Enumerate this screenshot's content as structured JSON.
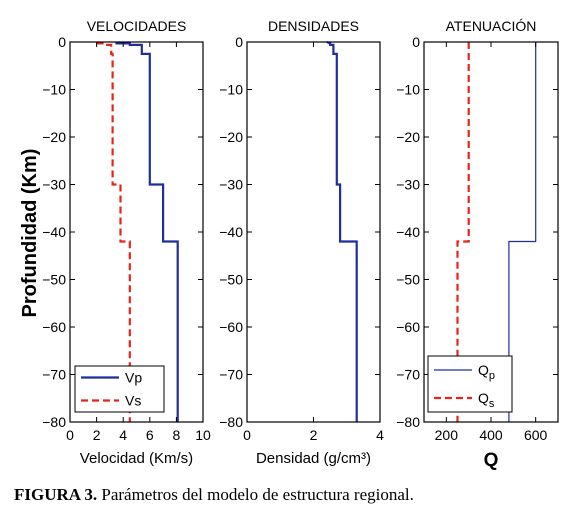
{
  "y_axis_label": "Profundidad (Km)",
  "caption": {
    "label": "FIGURA 3.",
    "text": " Parámetros del modelo de estructura regional."
  },
  "colors": {
    "blue": "#1f2e9c",
    "red": "#e8231c",
    "axis": "#000000"
  },
  "chart_data": [
    {
      "type": "line",
      "title": "VELOCIDADES",
      "xlabel": "Velocidad (Km/s)",
      "ylabel": "Profundidad (Km)",
      "xlim": [
        0,
        10
      ],
      "ylim": [
        -80,
        0
      ],
      "xticks": [
        0,
        2,
        4,
        6,
        8,
        10
      ],
      "yticks": [
        0,
        -10,
        -20,
        -30,
        -40,
        -50,
        -60,
        -70,
        -80
      ],
      "legend": "bottom-left",
      "series": [
        {
          "name": "Vp",
          "color": "#1f2e9c",
          "dash": "solid",
          "points": [
            [
              3.5,
              0
            ],
            [
              3.5,
              -0.3
            ],
            [
              4.5,
              -0.3
            ],
            [
              4.5,
              -0.6
            ],
            [
              5.4,
              -0.6
            ],
            [
              5.4,
              -2.5
            ],
            [
              6.0,
              -2.5
            ],
            [
              6.0,
              -30
            ],
            [
              7.0,
              -30
            ],
            [
              7.0,
              -42
            ],
            [
              8.1,
              -42
            ],
            [
              8.1,
              -80
            ]
          ]
        },
        {
          "name": "Vs",
          "color": "#e8231c",
          "dash": "dashed",
          "points": [
            [
              2.0,
              -0.3
            ],
            [
              2.6,
              -0.3
            ],
            [
              2.6,
              -0.6
            ],
            [
              3.1,
              -0.6
            ],
            [
              3.1,
              -2.5
            ],
            [
              3.2,
              -2.5
            ],
            [
              3.2,
              -30
            ],
            [
              3.8,
              -30
            ],
            [
              3.8,
              -42
            ],
            [
              4.5,
              -42
            ],
            [
              4.5,
              -80
            ]
          ]
        }
      ]
    },
    {
      "type": "line",
      "title": "DENSIDADES",
      "xlabel": "Densidad (g/cm³)",
      "ylabel": "",
      "xlim": [
        0,
        4
      ],
      "ylim": [
        -80,
        0
      ],
      "xticks": [
        0,
        2,
        4
      ],
      "yticks": [
        0,
        -10,
        -20,
        -30,
        -40,
        -50,
        -60,
        -70,
        -80
      ],
      "series": [
        {
          "name": "",
          "color": "#1f2e9c",
          "dash": "solid",
          "points": [
            [
              2.4,
              0
            ],
            [
              2.5,
              -0.3
            ],
            [
              2.5,
              -0.6
            ],
            [
              2.6,
              -0.6
            ],
            [
              2.6,
              -2.5
            ],
            [
              2.7,
              -2.5
            ],
            [
              2.7,
              -30
            ],
            [
              2.8,
              -30
            ],
            [
              2.8,
              -42
            ],
            [
              3.3,
              -42
            ],
            [
              3.3,
              -80
            ]
          ]
        }
      ]
    },
    {
      "type": "line",
      "title": "ATENUACIÓN",
      "xlabel": "Q",
      "ylabel": "",
      "xlim": [
        100,
        700
      ],
      "ylim": [
        -80,
        0
      ],
      "xticks": [
        200,
        400,
        600
      ],
      "yticks": [
        0,
        -10,
        -20,
        -30,
        -40,
        -50,
        -60,
        -70,
        -80
      ],
      "legend": "bottom-left",
      "series": [
        {
          "name": "Qp",
          "color": "#1f2e9c",
          "dash": "solid",
          "points": [
            [
              600,
              0
            ],
            [
              600,
              -42
            ],
            [
              480,
              -42
            ],
            [
              480,
              -80
            ]
          ]
        },
        {
          "name": "Qs",
          "color": "#e8231c",
          "dash": "dashed",
          "points": [
            [
              300,
              0
            ],
            [
              300,
              -42
            ],
            [
              250,
              -42
            ],
            [
              250,
              -80
            ]
          ]
        }
      ]
    }
  ]
}
